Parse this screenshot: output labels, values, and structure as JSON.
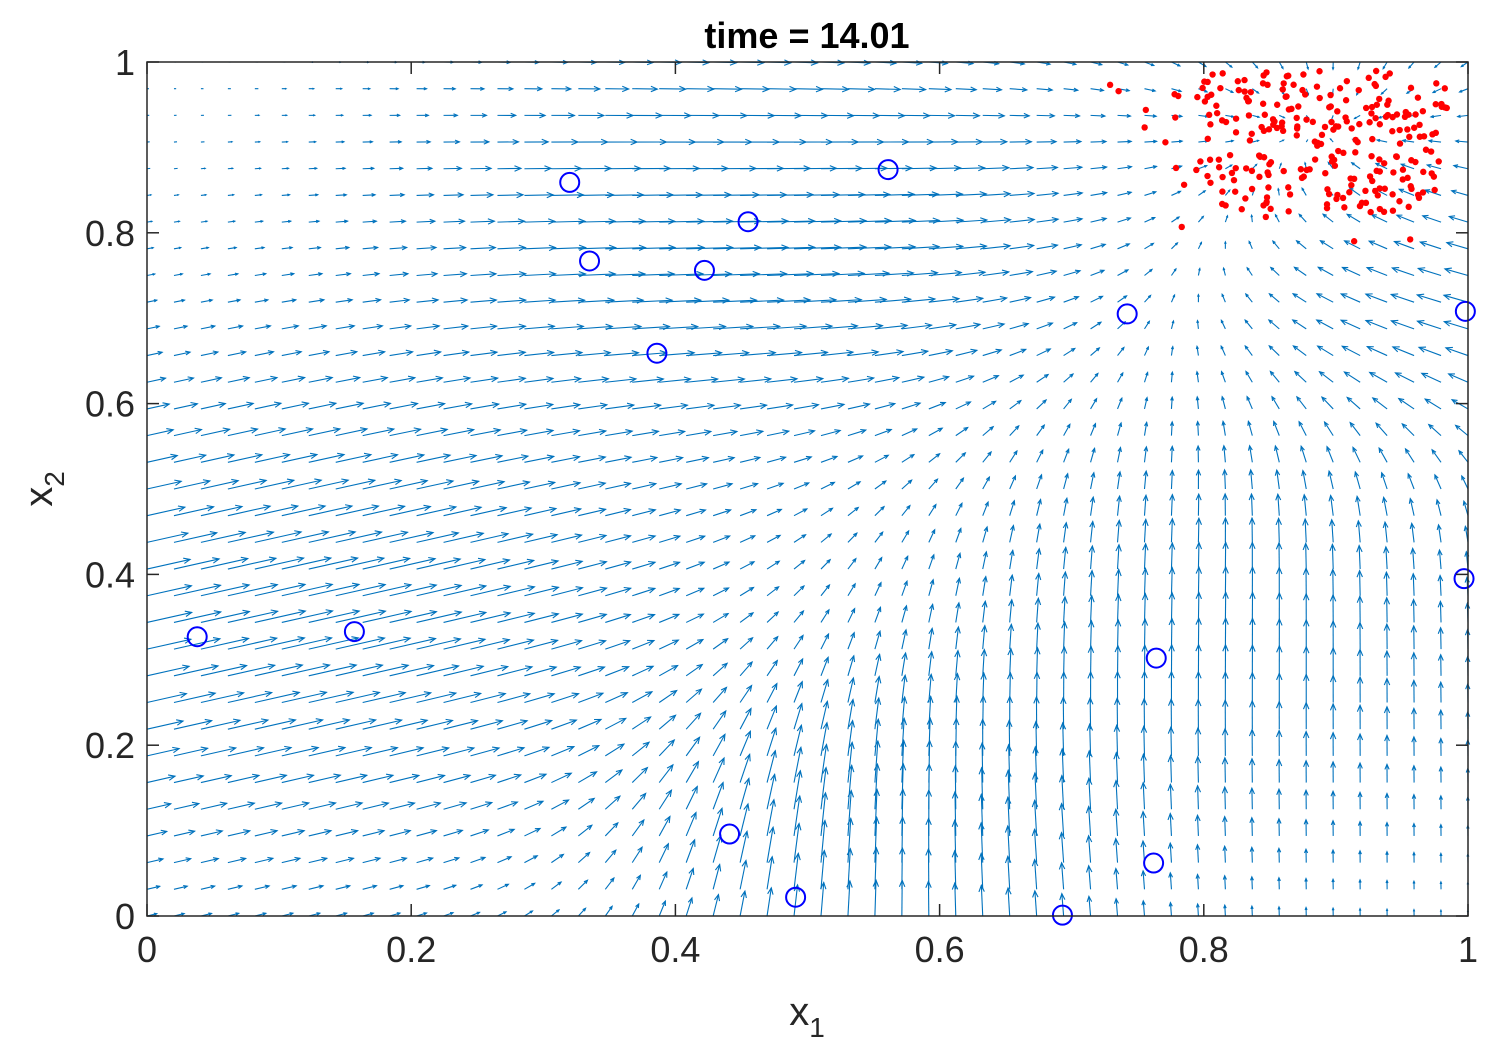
{
  "chart_data": {
    "type": "scatter",
    "title": "time = 14.01",
    "xlabel": "x",
    "xlabel_sub": "1",
    "ylabel": "x",
    "ylabel_sub": "2",
    "xlim": [
      0,
      1
    ],
    "ylim": [
      0,
      1
    ],
    "xticks": [
      0,
      0.2,
      0.4,
      0.6,
      0.8,
      1
    ],
    "xtick_labels": [
      "0",
      "0.2",
      "0.4",
      "0.6",
      "0.8",
      "1"
    ],
    "yticks": [
      0,
      0.2,
      0.4,
      0.6,
      0.8,
      1
    ],
    "ytick_labels": [
      "0",
      "0.2",
      "0.4",
      "0.6",
      "0.8",
      "1"
    ],
    "grid": false,
    "colors": {
      "quiver": "#0072BD",
      "sources": "#0000FF",
      "particles": "#FF0000",
      "axes": "#262626"
    },
    "quiver_grid": {
      "nx": 50,
      "ny": 33
    },
    "sources": [
      {
        "x": 0.038,
        "y": 0.327
      },
      {
        "x": 0.157,
        "y": 0.333
      },
      {
        "x": 0.32,
        "y": 0.859
      },
      {
        "x": 0.335,
        "y": 0.767
      },
      {
        "x": 0.386,
        "y": 0.659
      },
      {
        "x": 0.422,
        "y": 0.756
      },
      {
        "x": 0.455,
        "y": 0.813
      },
      {
        "x": 0.561,
        "y": 0.874
      },
      {
        "x": 0.441,
        "y": 0.096
      },
      {
        "x": 0.491,
        "y": 0.022
      },
      {
        "x": 0.693,
        "y": 0.001
      },
      {
        "x": 0.762,
        "y": 0.062
      },
      {
        "x": 0.764,
        "y": 0.302
      },
      {
        "x": 0.742,
        "y": 0.705
      },
      {
        "x": 0.998,
        "y": 0.708
      },
      {
        "x": 0.997,
        "y": 0.395
      }
    ],
    "particles": {
      "count": 260,
      "x_range": [
        0.72,
        0.985
      ],
      "y_range": [
        0.79,
        0.99
      ],
      "center": [
        0.885,
        0.91
      ]
    }
  }
}
